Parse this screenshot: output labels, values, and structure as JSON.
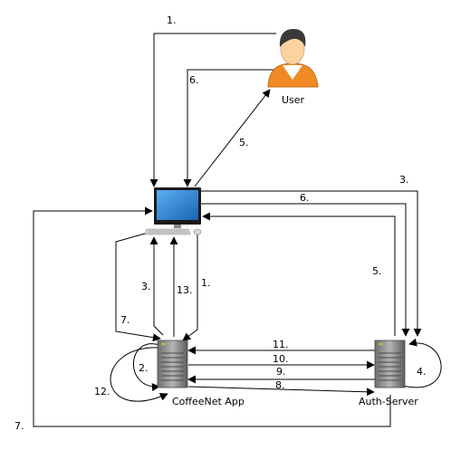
{
  "nodes": {
    "user": {
      "label": "User",
      "icon": "user-icon"
    },
    "workstation": {
      "label": "",
      "icon": "desktop-computer-icon"
    },
    "app_server": {
      "label": "CoffeeNet App",
      "icon": "server-icon"
    },
    "auth_server": {
      "label": "Auth-Server",
      "icon": "server-icon"
    }
  },
  "steps": {
    "s1_top": "1.",
    "s1_side": "1.",
    "s2": "2.",
    "s3_left": "3.",
    "s3_right": "3.",
    "s4": "4.",
    "s5_user": "5.",
    "s5_auth": "5.",
    "s6_user": "6.",
    "s6_auth": "6.",
    "s7_inner": "7.",
    "s7_outer": "7.",
    "s8": "8.",
    "s9": "9.",
    "s10": "10.",
    "s11": "11.",
    "s12": "12.",
    "s13": "13."
  },
  "colors": {
    "user_orange": "#f08a24",
    "screen_blue": "#2a7fd0",
    "server_gray": "#8a8a8a",
    "line": "#000000"
  }
}
